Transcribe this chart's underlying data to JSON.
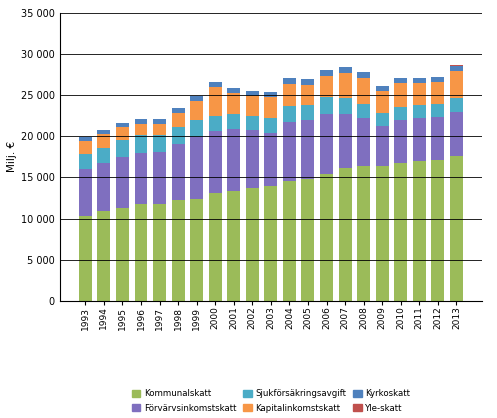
{
  "years": [
    1993,
    1994,
    1995,
    1996,
    1997,
    1998,
    1999,
    2000,
    2001,
    2002,
    2003,
    2004,
    2005,
    2006,
    2007,
    2008,
    2009,
    2010,
    2011,
    2012,
    2013
  ],
  "Kommunalskatt": [
    10300,
    10900,
    11300,
    11800,
    11800,
    12200,
    12400,
    13100,
    13400,
    13700,
    13900,
    14500,
    14800,
    15400,
    16100,
    16400,
    16400,
    16800,
    17000,
    17100,
    17600
  ],
  "Förvärvsinkomstskatt": [
    5700,
    5800,
    6200,
    6200,
    6300,
    6800,
    7500,
    7500,
    7500,
    7000,
    6500,
    7200,
    7100,
    7300,
    6600,
    5800,
    4800,
    5200,
    5200,
    5200,
    5300
  ],
  "Sjukförsäkringsavgift": [
    1800,
    1900,
    2000,
    2100,
    2100,
    2100,
    2100,
    1900,
    1800,
    1800,
    1800,
    1900,
    1900,
    2000,
    1900,
    1700,
    1600,
    1500,
    1600,
    1600,
    1700
  ],
  "Kapitalinkomstskatt": [
    1600,
    1700,
    1600,
    1400,
    1300,
    1700,
    2300,
    3500,
    2500,
    2400,
    2500,
    2700,
    2400,
    2600,
    3100,
    3200,
    2700,
    3000,
    2700,
    2700,
    3300
  ],
  "Kyrkoskatt": [
    500,
    500,
    500,
    600,
    600,
    600,
    600,
    600,
    600,
    600,
    600,
    700,
    700,
    700,
    700,
    700,
    600,
    600,
    600,
    600,
    600
  ],
  "Yle-skatt": [
    0,
    0,
    0,
    0,
    0,
    0,
    0,
    0,
    0,
    0,
    0,
    0,
    0,
    0,
    0,
    0,
    0,
    0,
    0,
    0,
    150
  ],
  "colors": {
    "Kommunalskatt": "#9bbb59",
    "Förvärvsinkomstskatt": "#7f6fbf",
    "Sjukförsäkringsavgift": "#4bacc6",
    "Kapitalinkomstskatt": "#f79646",
    "Kyrkoskatt": "#4f81bd",
    "Yle-skatt": "#c0504d"
  },
  "legend_row1": [
    "Kommunalskatt",
    "Förvärvsinkomstskatt",
    "Sjukförsäkringsavgift"
  ],
  "legend_row2": [
    "Kapitalinkomstskatt",
    "Kyrkoskatt",
    "Yle-skatt"
  ],
  "ylabel": "Milj. €",
  "ylim": [
    0,
    35000
  ],
  "yticks": [
    0,
    5000,
    10000,
    15000,
    20000,
    25000,
    30000,
    35000
  ],
  "ytick_labels": [
    "0",
    "5 000",
    "10 000",
    "15 000",
    "20 000",
    "25 000",
    "30 000",
    "35 000"
  ],
  "background_color": "#ffffff",
  "grid_color": "#000000",
  "bar_width": 0.7
}
